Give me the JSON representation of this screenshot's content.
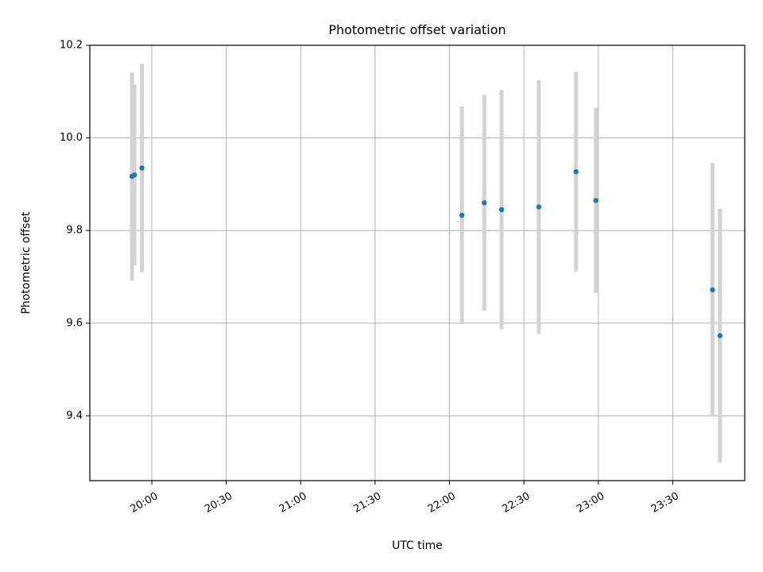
{
  "chart_data": {
    "type": "scatter",
    "title": "Photometric offset variation",
    "xlabel": "UTC time",
    "ylabel": "Photometric offset",
    "x_format": "time HH:MM (UTC)",
    "xlim": [
      "19:35",
      "23:59"
    ],
    "ylim": [
      9.26,
      10.2
    ],
    "xticks": [
      "20:00",
      "20:30",
      "21:00",
      "21:30",
      "22:00",
      "22:30",
      "23:00",
      "23:30"
    ],
    "yticks": [
      9.4,
      9.6,
      9.8,
      10.0,
      10.2
    ],
    "ytick_labels": [
      "9.4",
      "9.6",
      "9.8",
      "10.0",
      "10.2"
    ],
    "grid": true,
    "legend": "none",
    "colors": {
      "point": "#1f77b4",
      "errorbar": "#d3d3d3"
    },
    "points": [
      {
        "x": "19:52",
        "y": 9.917,
        "err": 0.225
      },
      {
        "x": "19:53",
        "y": 9.92,
        "err": 0.195
      },
      {
        "x": "19:56",
        "y": 9.935,
        "err": 0.225
      },
      {
        "x": "22:05",
        "y": 9.833,
        "err": 0.235
      },
      {
        "x": "22:14",
        "y": 9.86,
        "err": 0.233
      },
      {
        "x": "22:21",
        "y": 9.845,
        "err": 0.258
      },
      {
        "x": "22:36",
        "y": 9.851,
        "err": 0.274
      },
      {
        "x": "22:51",
        "y": 9.927,
        "err": 0.216
      },
      {
        "x": "22:59",
        "y": 9.865,
        "err": 0.2
      },
      {
        "x": "23:46",
        "y": 9.672,
        "err": 0.274
      },
      {
        "x": "23:49",
        "y": 9.573,
        "err": 0.274
      }
    ]
  }
}
